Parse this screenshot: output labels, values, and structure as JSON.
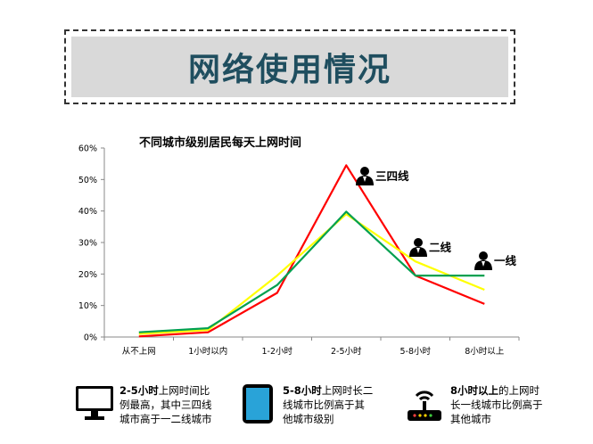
{
  "header": {
    "title": "网络使用情况"
  },
  "chart_data": {
    "type": "line",
    "title": "不同城市级别居民每天上网时间",
    "categories": [
      "从不上网",
      "1小时以内",
      "1-2小时",
      "2-5小时",
      "5-8小时",
      "8小时以上"
    ],
    "y_ticks": [
      "0%",
      "10%",
      "20%",
      "30%",
      "40%",
      "50%",
      "60%"
    ],
    "ylim": [
      0,
      60
    ],
    "series": [
      {
        "name": "三四线",
        "color": "#ff0000",
        "values": [
          0.2,
          1.5,
          14,
          54.5,
          19.5,
          10.5
        ]
      },
      {
        "name": "二线",
        "color": "#ffff00",
        "values": [
          1.0,
          2.2,
          19.5,
          39,
          24,
          15
        ]
      },
      {
        "name": "一线",
        "color": "#00a050",
        "values": [
          1.5,
          2.8,
          16.5,
          39.8,
          19.5,
          19.5
        ]
      }
    ],
    "grid": false
  },
  "footer": [
    {
      "icon": "monitor-icon",
      "bold": "2-5小时",
      "text1": "上网时间比",
      "text2": "例最高，其中三四线",
      "text3": "城市高于一二线城市"
    },
    {
      "icon": "tablet-icon",
      "bold": "5-8小时",
      "text1": "上网时长二",
      "text2": "线城市比例高于其",
      "text3": "他城市级别"
    },
    {
      "icon": "router-icon",
      "bold": "8小时以上",
      "text1": "的上网时",
      "text2": "长一线城市比例高于",
      "text3": "其他城市"
    }
  ]
}
